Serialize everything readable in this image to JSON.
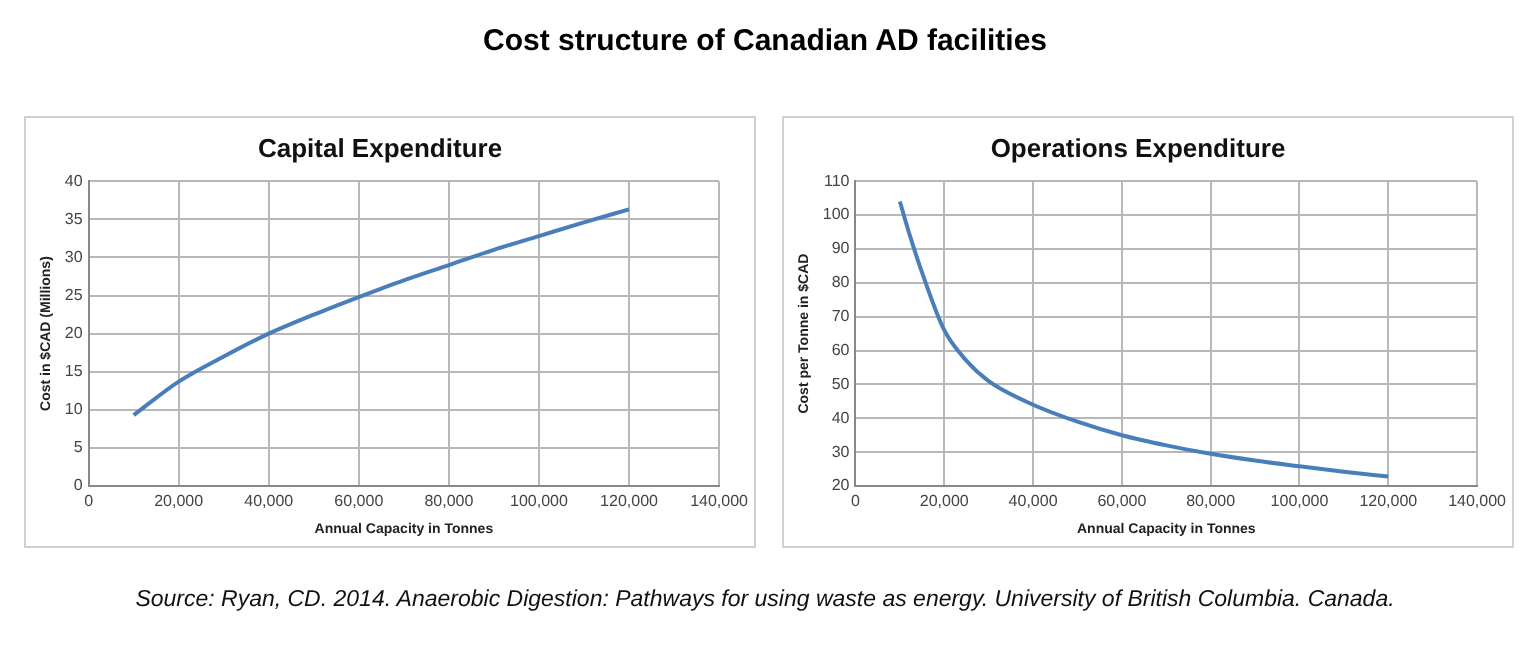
{
  "chart_data": [
    {
      "type": "other",
      "title": "Cost structure of Canadian AD facilities",
      "annotations": [
        "Source: Ryan, CD. 2014. Anaerobic Digestion: Pathways for using waste as energy. University of British Columbia. Canada."
      ]
    },
    {
      "type": "line",
      "title": "Capital Expenditure",
      "xlabel": "Annual Capacity in Tonnes",
      "ylabel": "Cost in $CAD (Millions)",
      "x": [
        10000,
        20000,
        30000,
        40000,
        50000,
        60000,
        70000,
        80000,
        90000,
        100000,
        110000,
        120000
      ],
      "series": [
        {
          "color": "#4a7ebb",
          "values": [
            9.3,
            13.7,
            17,
            20,
            22.5,
            24.8,
            27,
            29,
            31,
            32.8,
            34.6,
            36.3
          ]
        }
      ],
      "xlim": [
        0,
        140000
      ],
      "xticks": [
        0,
        {
          "value": 20000,
          "label": "20,000"
        },
        {
          "value": 40000,
          "label": "40,000"
        },
        {
          "value": 60000,
          "label": "60,000"
        },
        {
          "value": 80000,
          "label": "80,000"
        },
        {
          "value": 100000,
          "label": "100,000"
        },
        {
          "value": 120000,
          "label": "120,000"
        },
        {
          "value": 140000,
          "label": "140,000"
        }
      ],
      "ylim": [
        0,
        40
      ],
      "yticks": [
        0,
        5,
        10,
        15,
        20,
        25,
        30,
        35,
        40
      ],
      "grid": true,
      "legend": false,
      "marker": "none",
      "line_style": "solid"
    },
    {
      "type": "line",
      "title": "Operations Expenditure",
      "xlabel": "Annual Capacity in Tonnes",
      "ylabel": "Cost per Tonne in $CAD",
      "x": [
        10000,
        12000,
        15000,
        20000,
        25000,
        30000,
        40000,
        50000,
        60000,
        70000,
        80000,
        90000,
        100000,
        110000,
        120000
      ],
      "series": [
        {
          "color": "#4a7ebb",
          "values": [
            104,
            95,
            83,
            66,
            57,
            51,
            44,
            39,
            35,
            32,
            29.5,
            27.5,
            25.8,
            24.2,
            22.8
          ]
        }
      ],
      "xlim": [
        0,
        140000
      ],
      "xticks": [
        0,
        {
          "value": 20000,
          "label": "20,000"
        },
        {
          "value": 40000,
          "label": "40,000"
        },
        {
          "value": 60000,
          "label": "60,000"
        },
        {
          "value": 80000,
          "label": "80,000"
        },
        {
          "value": 100000,
          "label": "100,000"
        },
        {
          "value": 120000,
          "label": "120,000"
        },
        {
          "value": 140000,
          "label": "140,000"
        }
      ],
      "ylim": [
        20,
        110
      ],
      "yticks": [
        20,
        30,
        40,
        50,
        60,
        70,
        80,
        90,
        100,
        110
      ],
      "grid": true,
      "legend": false,
      "marker": "none",
      "line_style": "solid"
    }
  ]
}
